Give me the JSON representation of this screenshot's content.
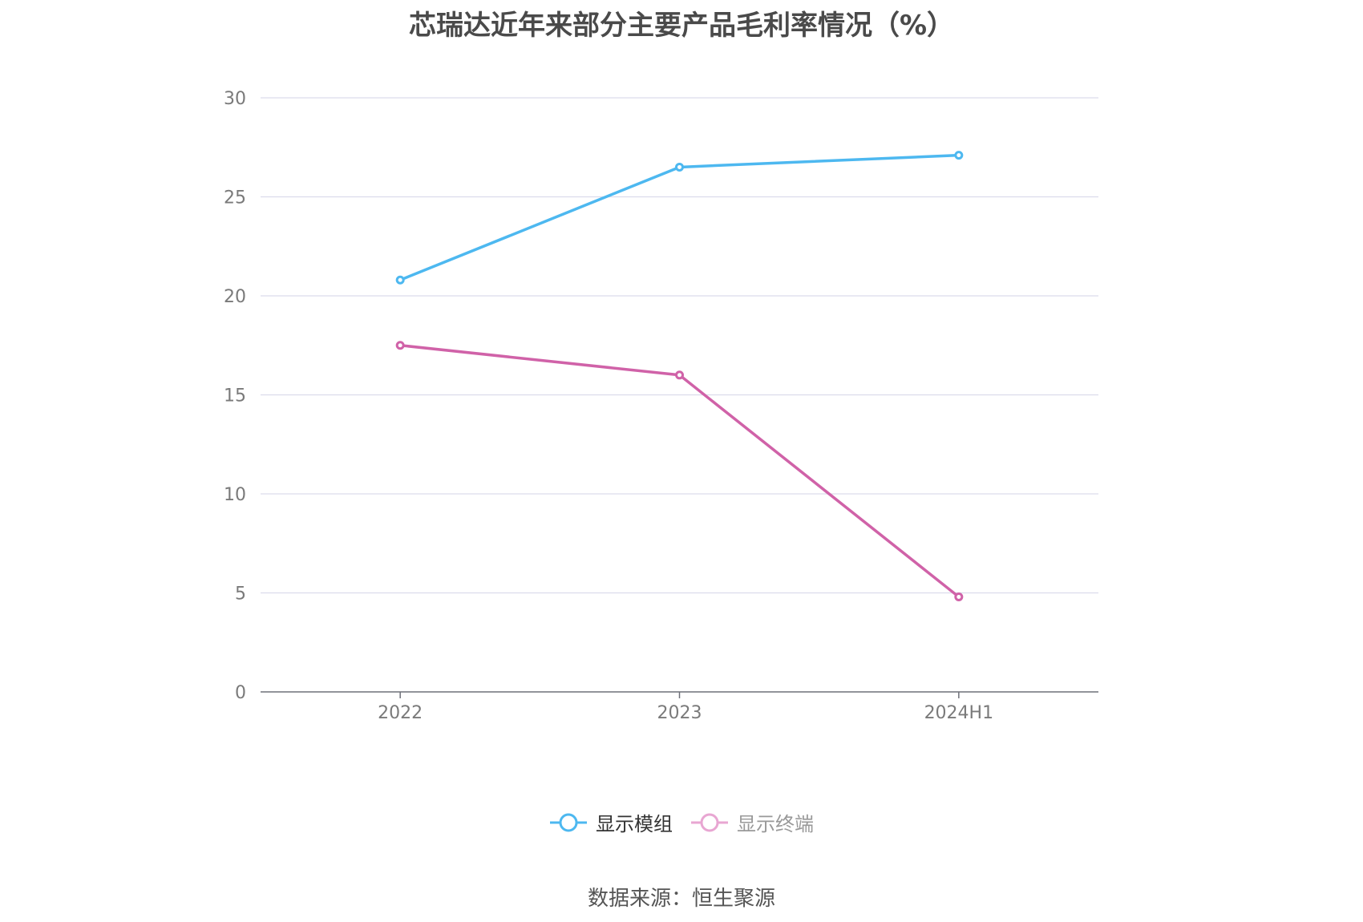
{
  "chart_data": {
    "type": "line",
    "title": "芯瑞达近年来部分主要产品毛利率情况（%）",
    "categories": [
      "2022",
      "2023",
      "2024H1"
    ],
    "ylim": [
      0,
      30
    ],
    "yticks": [
      "0",
      "5",
      "10",
      "15",
      "20",
      "25",
      "30"
    ],
    "grid": true,
    "legend_position": "bottom",
    "series": [
      {
        "name": "显示模组",
        "values": [
          20.8,
          26.5,
          27.1
        ],
        "color": "#4db8f0",
        "legend_color": "#4db8f0",
        "legend_active": true
      },
      {
        "name": "显示终端",
        "values": [
          17.5,
          16.0,
          4.8
        ],
        "color": "#d062a8",
        "legend_color": "#e8a6d2",
        "legend_active": false
      }
    ]
  },
  "source": "数据来源：恒生聚源"
}
